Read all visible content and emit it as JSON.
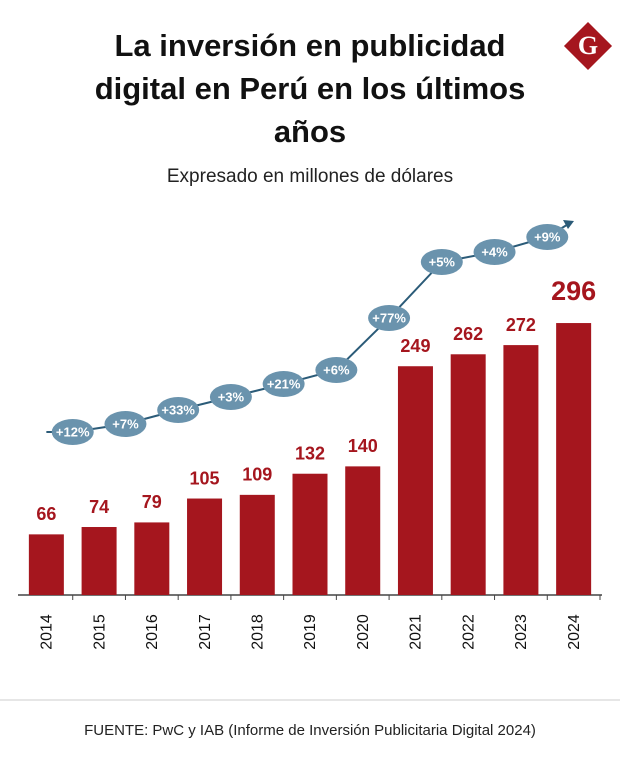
{
  "chart_data": {
    "type": "bar",
    "title": "La inversión en publicidad digital en Perú en los últimos años",
    "subtitle": "Expresado en millones de dólares",
    "categories": [
      "2014",
      "2015",
      "2016",
      "2017",
      "2018",
      "2019",
      "2020",
      "2021",
      "2022",
      "2023",
      "2024"
    ],
    "values": [
      66,
      74,
      79,
      105,
      109,
      132,
      140,
      249,
      262,
      272,
      296
    ],
    "color": "#a5161e",
    "ylim": [
      0,
      320
    ],
    "growth_labels": [
      "+12%",
      "+7%",
      "+33%",
      "+3%",
      "+21%",
      "+6%",
      "+77%",
      "+5%",
      "+4%",
      "+9%"
    ],
    "source": "FUENTE: PwC y IAB (Informe de Inversión Publicitaria Digital 2024)"
  }
}
